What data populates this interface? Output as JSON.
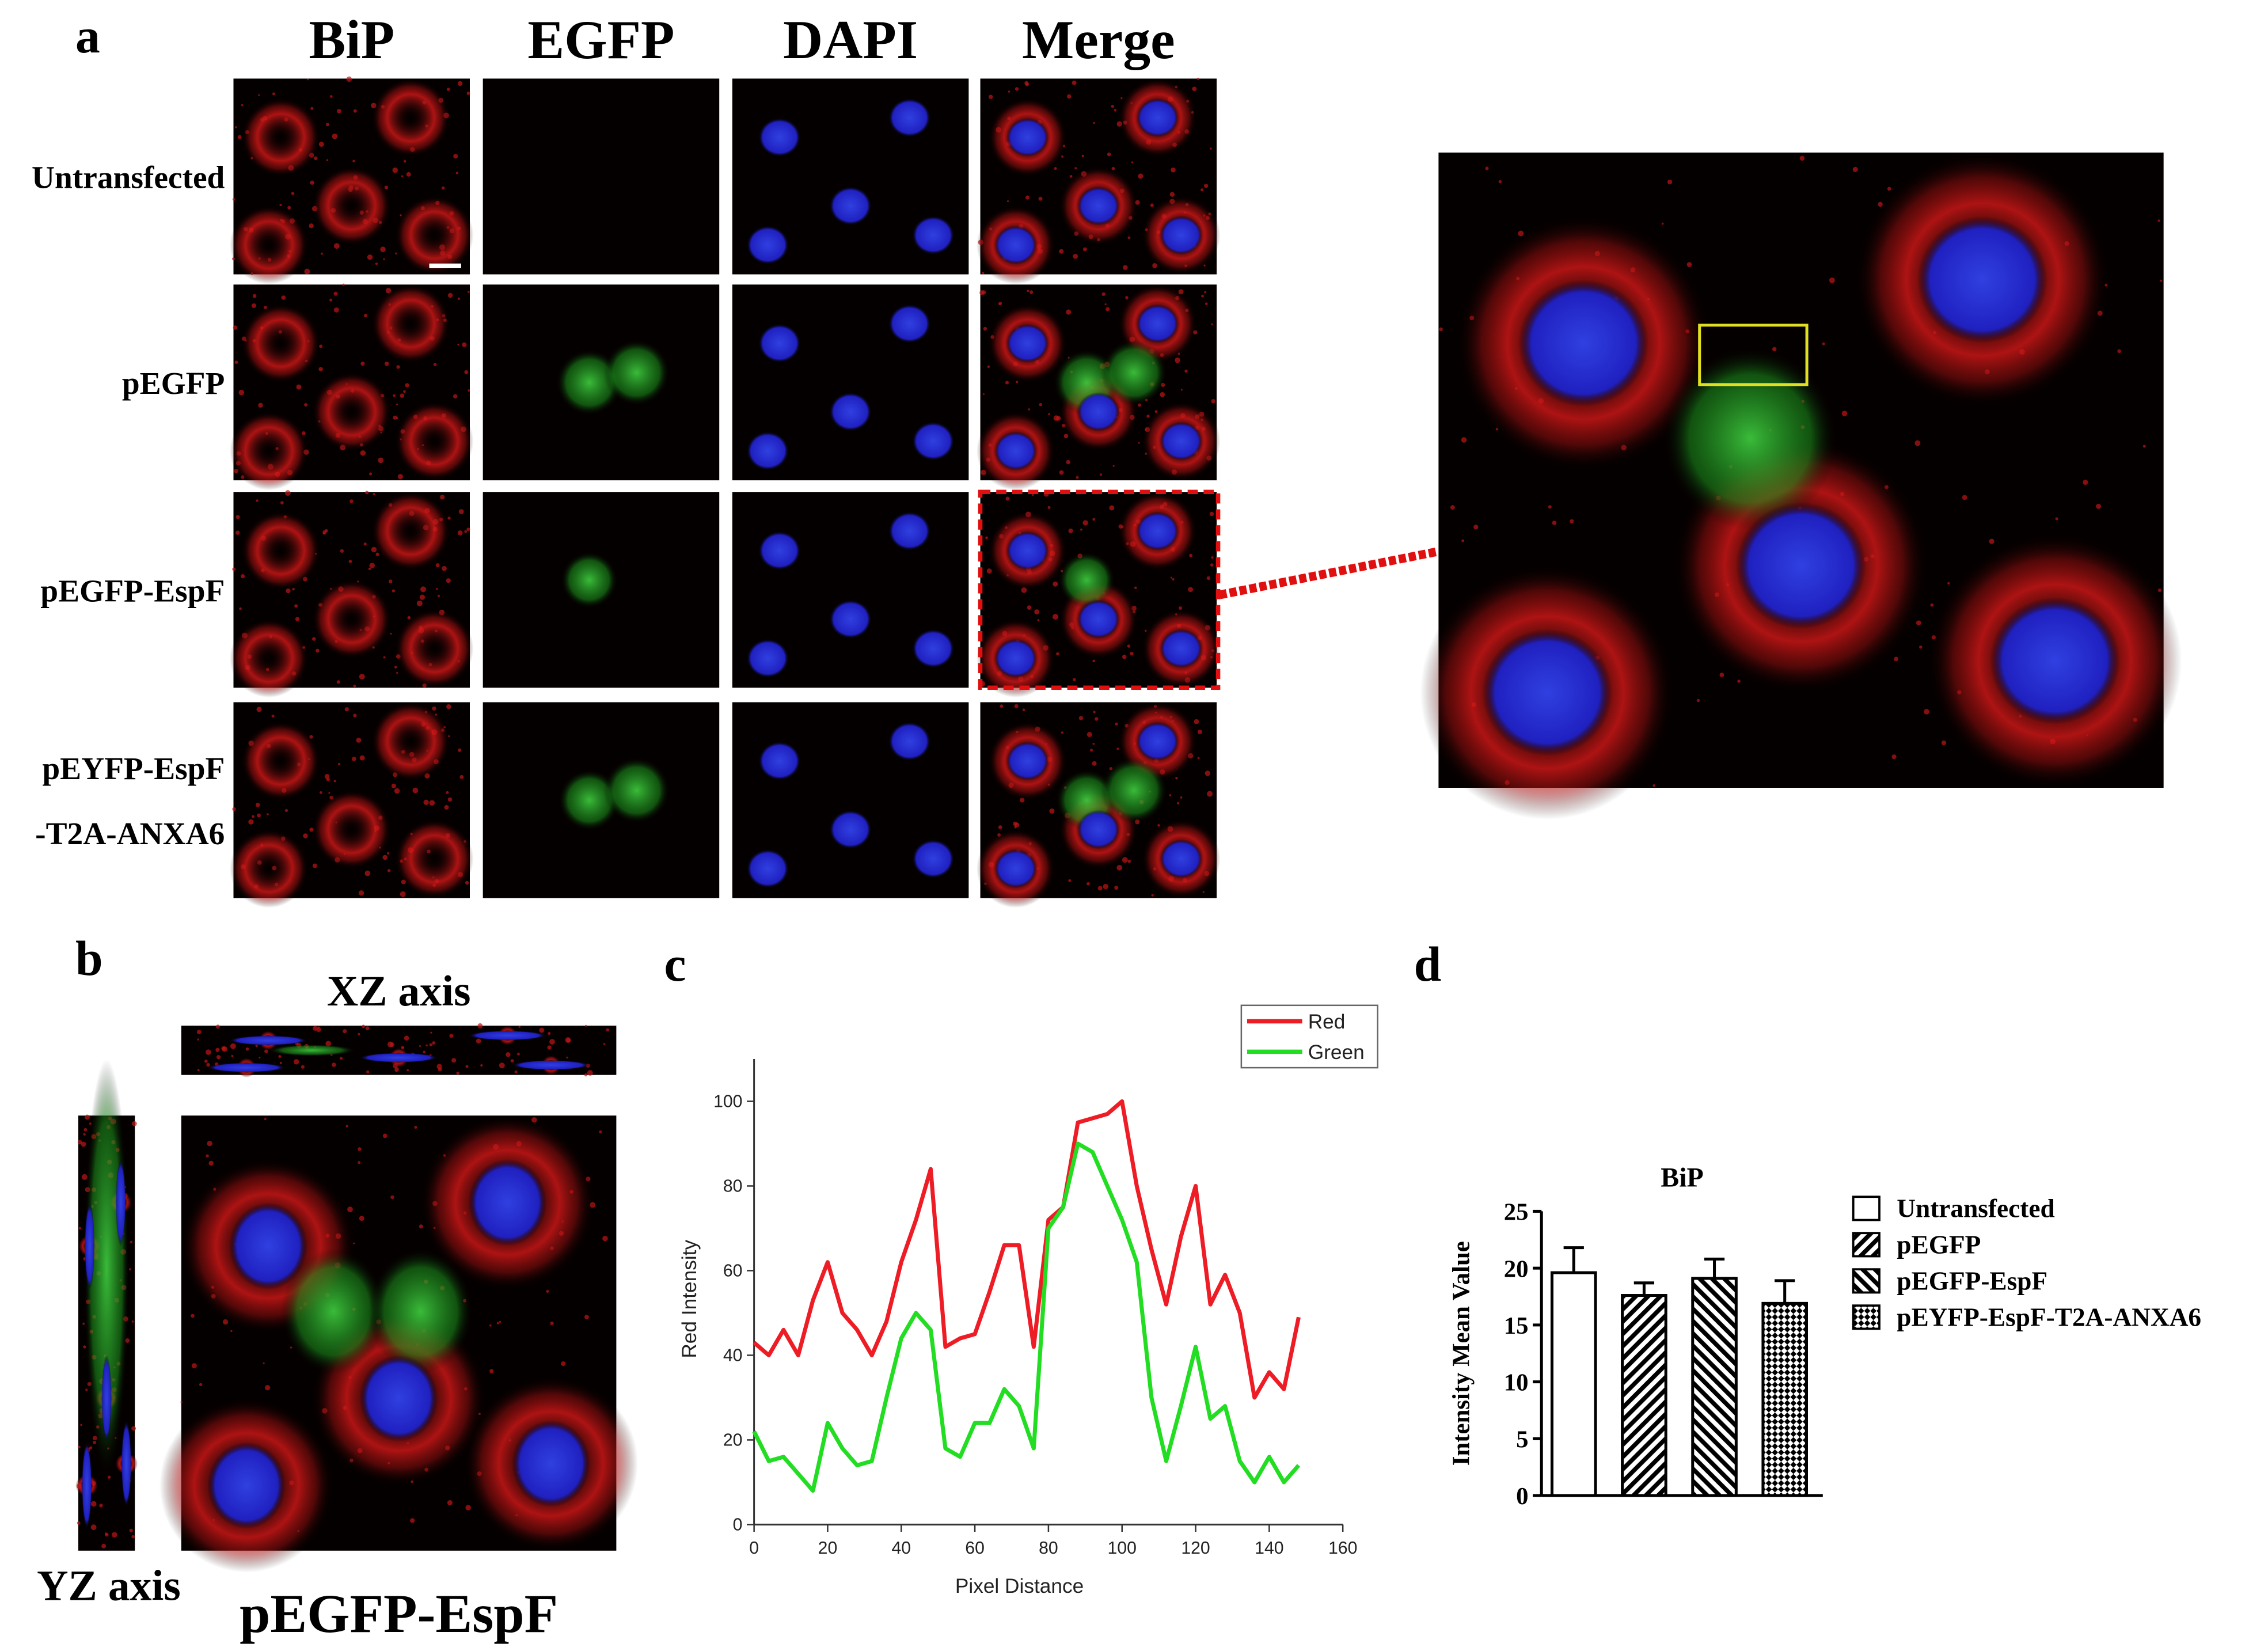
{
  "panel_labels": [
    "a",
    "b",
    "c",
    "d"
  ],
  "panel_a": {
    "columns": [
      "BiP",
      "EGFP",
      "DAPI",
      "Merge"
    ],
    "rows": [
      [
        "Untransfected"
      ],
      [
        "pEGFP"
      ],
      [
        "pEGFP-EspF"
      ],
      [
        "pEYFP-EspF",
        "-T2A-ANXA6"
      ]
    ]
  },
  "panel_b": {
    "xz_label": "XZ axis",
    "yz_label": "YZ axis",
    "caption": "pEGFP-EspF"
  },
  "chart_data": [
    {
      "type": "line",
      "x_label": "Pixel Distance",
      "y_label": "Red Intensity",
      "x": [
        0,
        4,
        8,
        12,
        16,
        20,
        24,
        28,
        32,
        36,
        40,
        44,
        48,
        52,
        56,
        60,
        64,
        68,
        72,
        76,
        80,
        84,
        88,
        92,
        96,
        100,
        104,
        108,
        112,
        116,
        120,
        124,
        128,
        132,
        136,
        140,
        144,
        148
      ],
      "series": [
        {
          "name": "Red",
          "color": "#ee1c25",
          "values": [
            43,
            40,
            46,
            40,
            53,
            62,
            50,
            46,
            40,
            48,
            62,
            72,
            84,
            42,
            44,
            45,
            55,
            66,
            66,
            42,
            72,
            75,
            95,
            96,
            97,
            100,
            80,
            65,
            52,
            68,
            80,
            52,
            59,
            50,
            30,
            36,
            32,
            49
          ]
        },
        {
          "name": "Green",
          "color": "#22dd22",
          "values": [
            22,
            15,
            16,
            12,
            8,
            24,
            18,
            14,
            15,
            30,
            44,
            50,
            46,
            18,
            16,
            24,
            24,
            32,
            28,
            18,
            70,
            75,
            90,
            88,
            80,
            72,
            62,
            30,
            15,
            28,
            42,
            25,
            28,
            15,
            10,
            16,
            10,
            14
          ]
        }
      ],
      "xlim": [
        0,
        160
      ],
      "xticks": [
        0,
        20,
        40,
        60,
        80,
        100,
        120,
        140,
        160
      ],
      "ylim": [
        0,
        110
      ],
      "yticks": [
        0,
        20,
        40,
        60,
        80,
        100
      ],
      "legend": "top-right"
    },
    {
      "type": "bar",
      "title": "BiP",
      "y_label": "Intensity Mean Value",
      "categories": [
        "Untransfected",
        "pEGFP",
        "pEGFP-EspF",
        "pEYFP-EspF-T2A-ANXA6"
      ],
      "values": [
        19.6,
        17.6,
        19.1,
        16.9
      ],
      "errors": [
        2.2,
        1.1,
        1.7,
        2.0
      ],
      "patterns": [
        "none",
        "forward-diagonal",
        "back-diagonal",
        "crosshatch"
      ],
      "ylim": [
        0,
        25
      ],
      "yticks": [
        0,
        5,
        10,
        15,
        20,
        25
      ],
      "legend": "right"
    }
  ]
}
